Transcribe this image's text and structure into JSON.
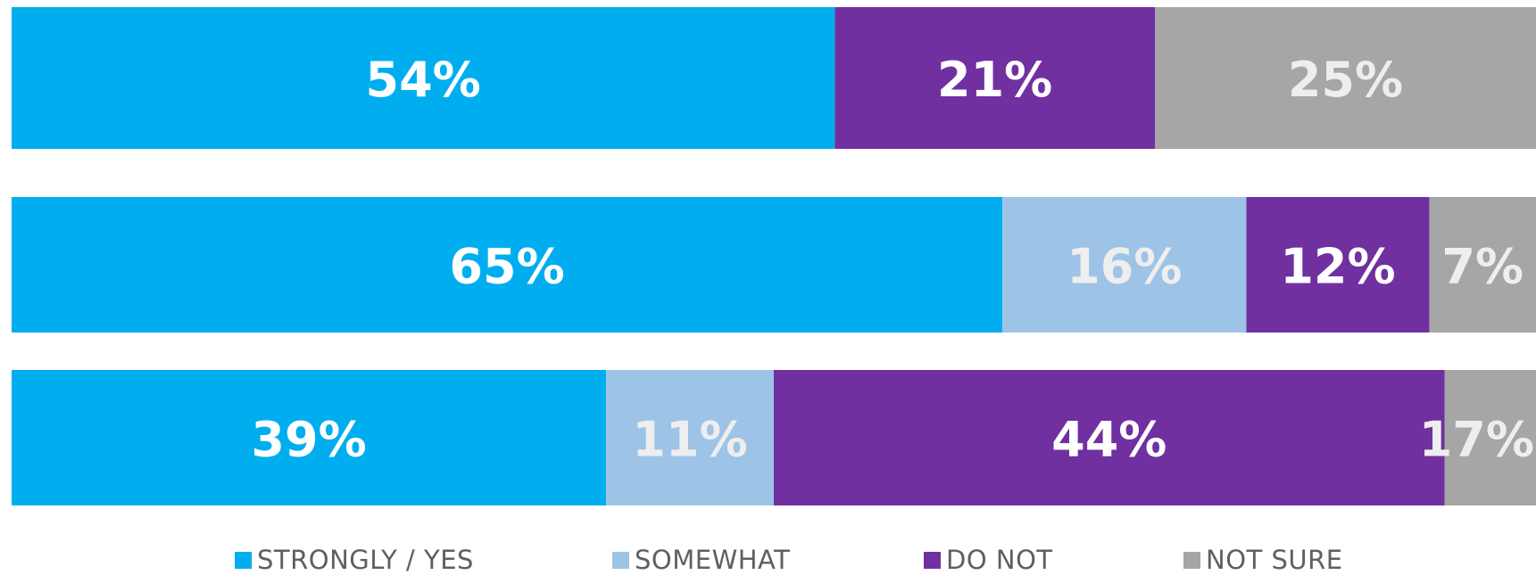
{
  "chart_data": {
    "type": "bar",
    "orientation": "horizontal",
    "stacked": true,
    "legend_position": "bottom",
    "grid": false,
    "xlim": [
      0,
      100
    ],
    "rows": [
      {
        "values": [
          54,
          null,
          21,
          25
        ],
        "labels": [
          "54%",
          "",
          "21%",
          "25%"
        ]
      },
      {
        "values": [
          65,
          16,
          12,
          7
        ],
        "labels": [
          "65%",
          "16%",
          "12%",
          "7%"
        ]
      },
      {
        "values": [
          39,
          11,
          44,
          17
        ],
        "labels": [
          "39%",
          "11%",
          "44%",
          "17%"
        ]
      }
    ],
    "series": [
      {
        "name": "STRONGLY / YES",
        "color": "#00AEEF"
      },
      {
        "name": "SOMEWHAT",
        "color": "#9DC3E6"
      },
      {
        "name": "DO NOT",
        "color": "#7030A0"
      },
      {
        "name": "NOT SURE",
        "color": "#A6A6A6"
      }
    ]
  }
}
